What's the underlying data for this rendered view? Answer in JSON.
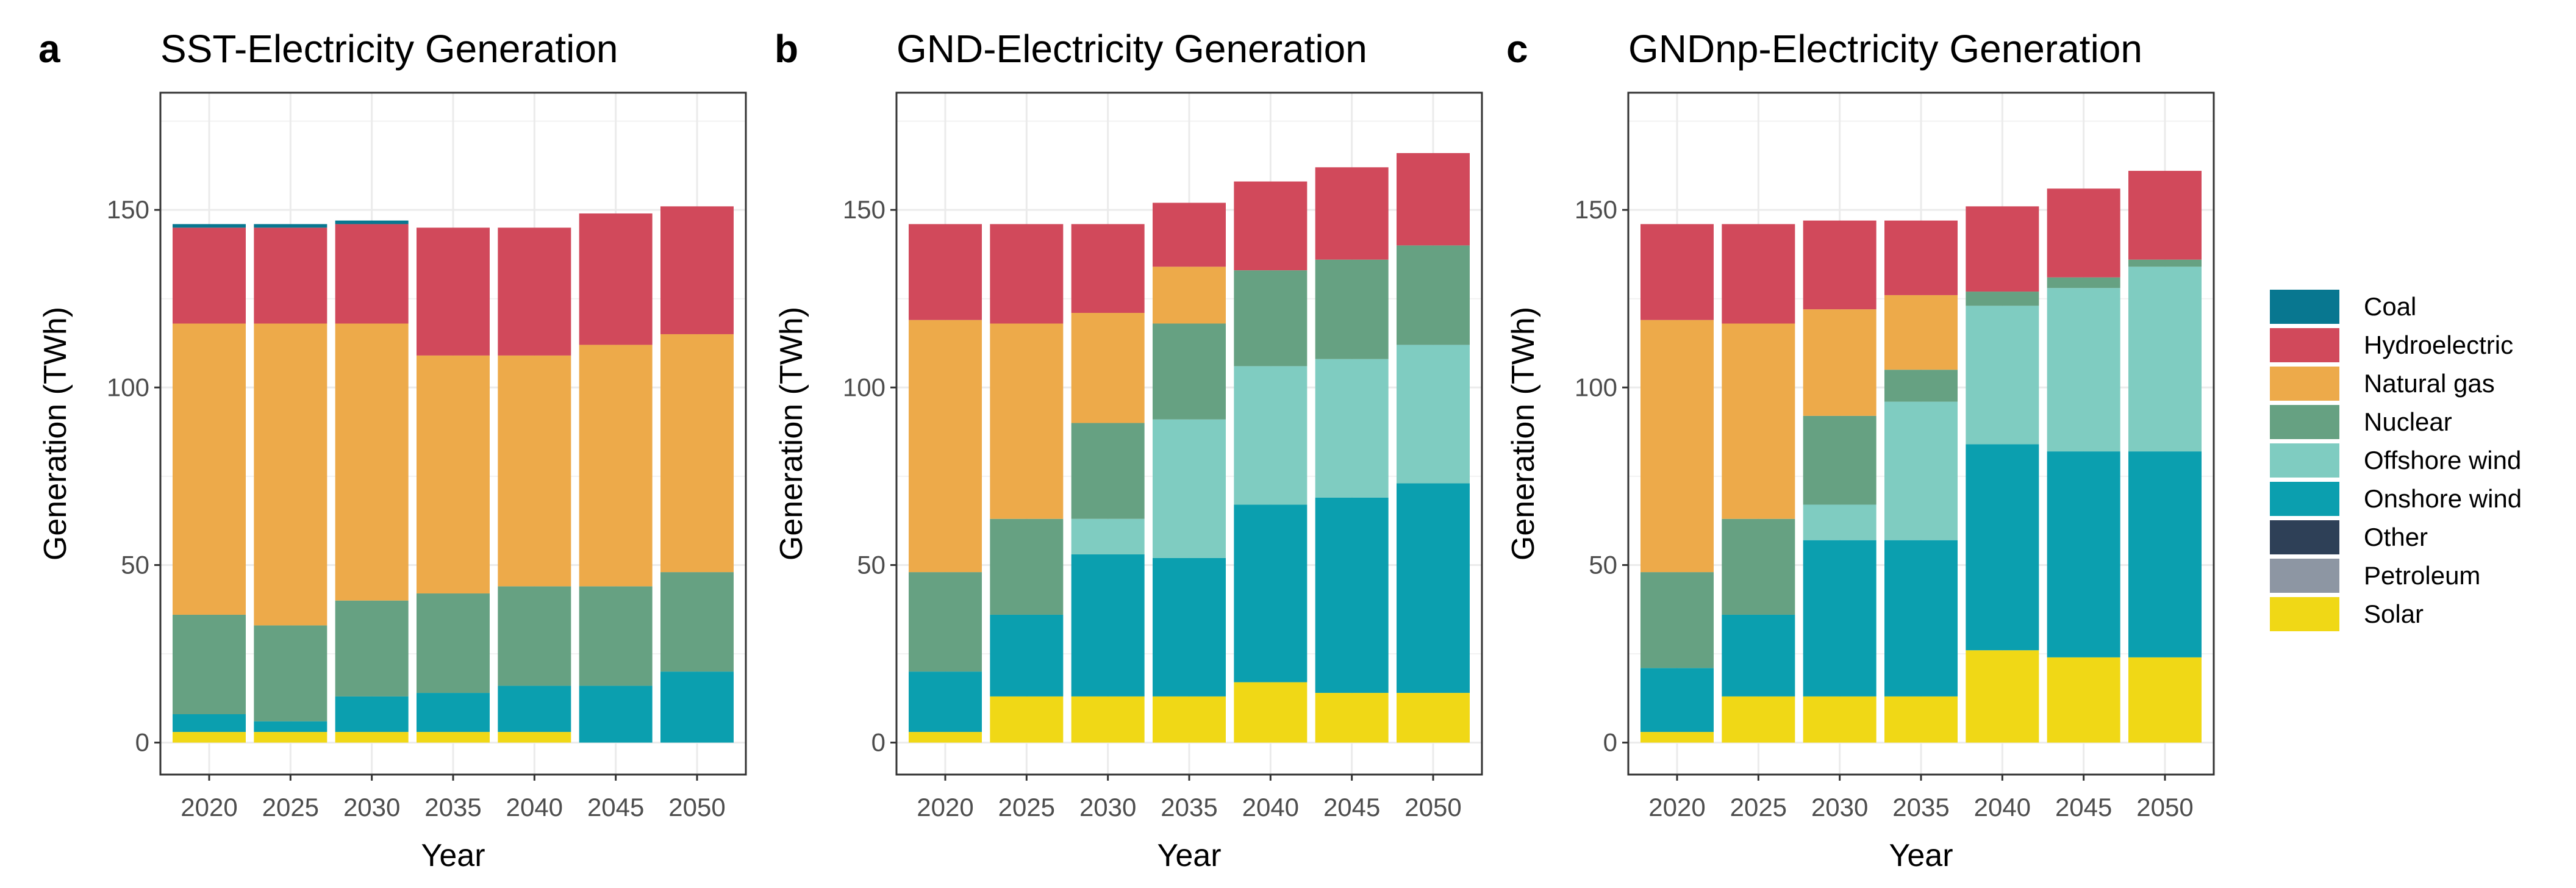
{
  "legend": [
    {
      "name": "Coal",
      "color": "#087790"
    },
    {
      "name": "Hydroelectric",
      "color": "#D1495B"
    },
    {
      "name": "Natural gas",
      "color": "#EDAA4A"
    },
    {
      "name": "Nuclear",
      "color": "#66A182"
    },
    {
      "name": "Offshore wind",
      "color": "#7FCCC1"
    },
    {
      "name": "Onshore wind",
      "color": "#0B9FAF"
    },
    {
      "name": "Other",
      "color": "#2E4057"
    },
    {
      "name": "Petroleum",
      "color": "#8D96A3"
    },
    {
      "name": "Solar",
      "color": "#F0D816"
    }
  ],
  "chart_data": [
    {
      "type": "bar",
      "stacked": true,
      "panel_letter": "a",
      "title": "SST-Electricity Generation",
      "xlabel": "Year",
      "ylabel": "Generation (TWh)",
      "ylim": [
        -9,
        183
      ],
      "yticks": [
        0,
        50,
        100,
        150
      ],
      "categories": [
        "2020",
        "2025",
        "2030",
        "2035",
        "2040",
        "2045",
        "2050"
      ],
      "series": [
        {
          "name": "Solar",
          "values": [
            3,
            3,
            3,
            3,
            3,
            0,
            0
          ]
        },
        {
          "name": "Onshore wind",
          "values": [
            5,
            3,
            10,
            11,
            13,
            16,
            20
          ]
        },
        {
          "name": "Nuclear",
          "values": [
            28,
            27,
            27,
            28,
            28,
            28,
            28
          ]
        },
        {
          "name": "Natural gas",
          "values": [
            82,
            85,
            78,
            67,
            65,
            68,
            67
          ]
        },
        {
          "name": "Hydroelectric",
          "values": [
            27,
            27,
            28,
            36,
            36,
            37,
            36
          ]
        },
        {
          "name": "Coal",
          "values": [
            1,
            1,
            1,
            0,
            0,
            0,
            0
          ]
        }
      ]
    },
    {
      "type": "bar",
      "stacked": true,
      "panel_letter": "b",
      "title": "GND-Electricity Generation",
      "xlabel": "Year",
      "ylabel": "Generation (TWh)",
      "ylim": [
        -9,
        183
      ],
      "yticks": [
        0,
        50,
        100,
        150
      ],
      "categories": [
        "2020",
        "2025",
        "2030",
        "2035",
        "2040",
        "2045",
        "2050"
      ],
      "series": [
        {
          "name": "Solar",
          "values": [
            3,
            13,
            13,
            13,
            17,
            14,
            14
          ]
        },
        {
          "name": "Onshore wind",
          "values": [
            17,
            23,
            40,
            39,
            50,
            55,
            59
          ]
        },
        {
          "name": "Offshore wind",
          "values": [
            0,
            0,
            10,
            39,
            39,
            39,
            39
          ]
        },
        {
          "name": "Nuclear",
          "values": [
            28,
            27,
            27,
            27,
            27,
            28,
            28
          ]
        },
        {
          "name": "Natural gas",
          "values": [
            71,
            55,
            31,
            16,
            0,
            0,
            0
          ]
        },
        {
          "name": "Hydroelectric",
          "values": [
            27,
            28,
            25,
            18,
            25,
            26,
            26
          ]
        }
      ]
    },
    {
      "type": "bar",
      "stacked": true,
      "panel_letter": "c",
      "title": "GNDnp-Electricity Generation",
      "xlabel": "Year",
      "ylabel": "Generation (TWh)",
      "ylim": [
        -9,
        183
      ],
      "yticks": [
        0,
        50,
        100,
        150
      ],
      "categories": [
        "2020",
        "2025",
        "2030",
        "2035",
        "2040",
        "2045",
        "2050"
      ],
      "series": [
        {
          "name": "Solar",
          "values": [
            3,
            13,
            13,
            13,
            26,
            24,
            24
          ]
        },
        {
          "name": "Onshore wind",
          "values": [
            18,
            23,
            44,
            44,
            58,
            58,
            58
          ]
        },
        {
          "name": "Offshore wind",
          "values": [
            0,
            0,
            10,
            39,
            39,
            46,
            52
          ]
        },
        {
          "name": "Nuclear",
          "values": [
            27,
            27,
            25,
            9,
            4,
            3,
            2
          ]
        },
        {
          "name": "Natural gas",
          "values": [
            71,
            55,
            30,
            21,
            0,
            0,
            0
          ]
        },
        {
          "name": "Hydroelectric",
          "values": [
            27,
            28,
            25,
            21,
            24,
            25,
            25
          ]
        }
      ]
    }
  ]
}
